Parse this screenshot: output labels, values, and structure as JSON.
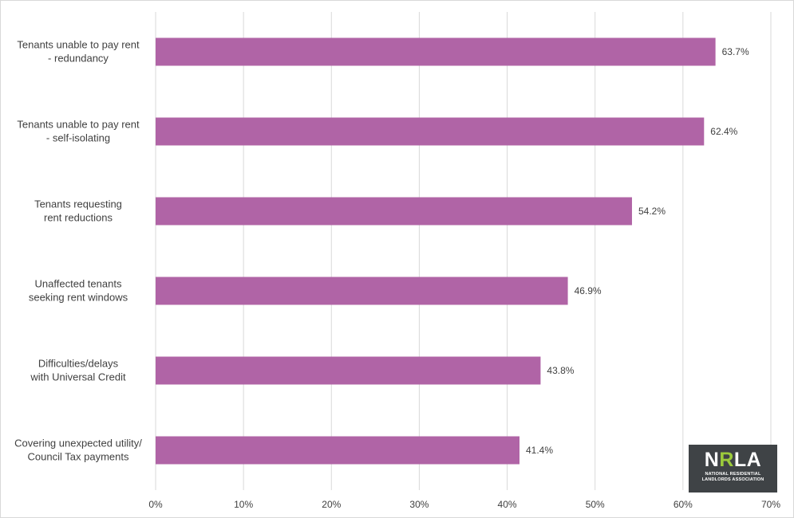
{
  "chart_data": {
    "type": "bar",
    "orientation": "horizontal",
    "categories": [
      [
        "Tenants unable to pay rent",
        "- redundancy"
      ],
      [
        "Tenants unable to pay rent",
        "- self-isolating"
      ],
      [
        "Tenants requesting",
        "rent reductions"
      ],
      [
        "Unaffected tenants",
        "seeking rent windows"
      ],
      [
        "Difficulties/delays",
        "with Universal Credit"
      ],
      [
        "Covering unexpected utility/",
        "Council Tax payments"
      ]
    ],
    "values": [
      63.7,
      62.4,
      54.2,
      46.9,
      43.8,
      41.4
    ],
    "data_labels": [
      "63.7%",
      "62.4%",
      "54.2%",
      "46.9%",
      "43.8%",
      "41.4%"
    ],
    "xlim": [
      0,
      70
    ],
    "x_ticks": [
      0,
      10,
      20,
      30,
      40,
      50,
      60,
      70
    ],
    "x_tick_labels": [
      "0%",
      "10%",
      "20%",
      "30%",
      "40%",
      "50%",
      "60%",
      "70%"
    ],
    "grid": "vertical",
    "bar_color": "#b064a6",
    "grid_color": "#d9d9d9",
    "title": "",
    "xlabel": "",
    "ylabel": ""
  },
  "logo": {
    "word_left": "N",
    "word_accent": "R",
    "word_right": "LA",
    "sub_line1": "NATIONAL RESIDENTIAL",
    "sub_line2": "LANDLORDS ASSOCIATION"
  }
}
